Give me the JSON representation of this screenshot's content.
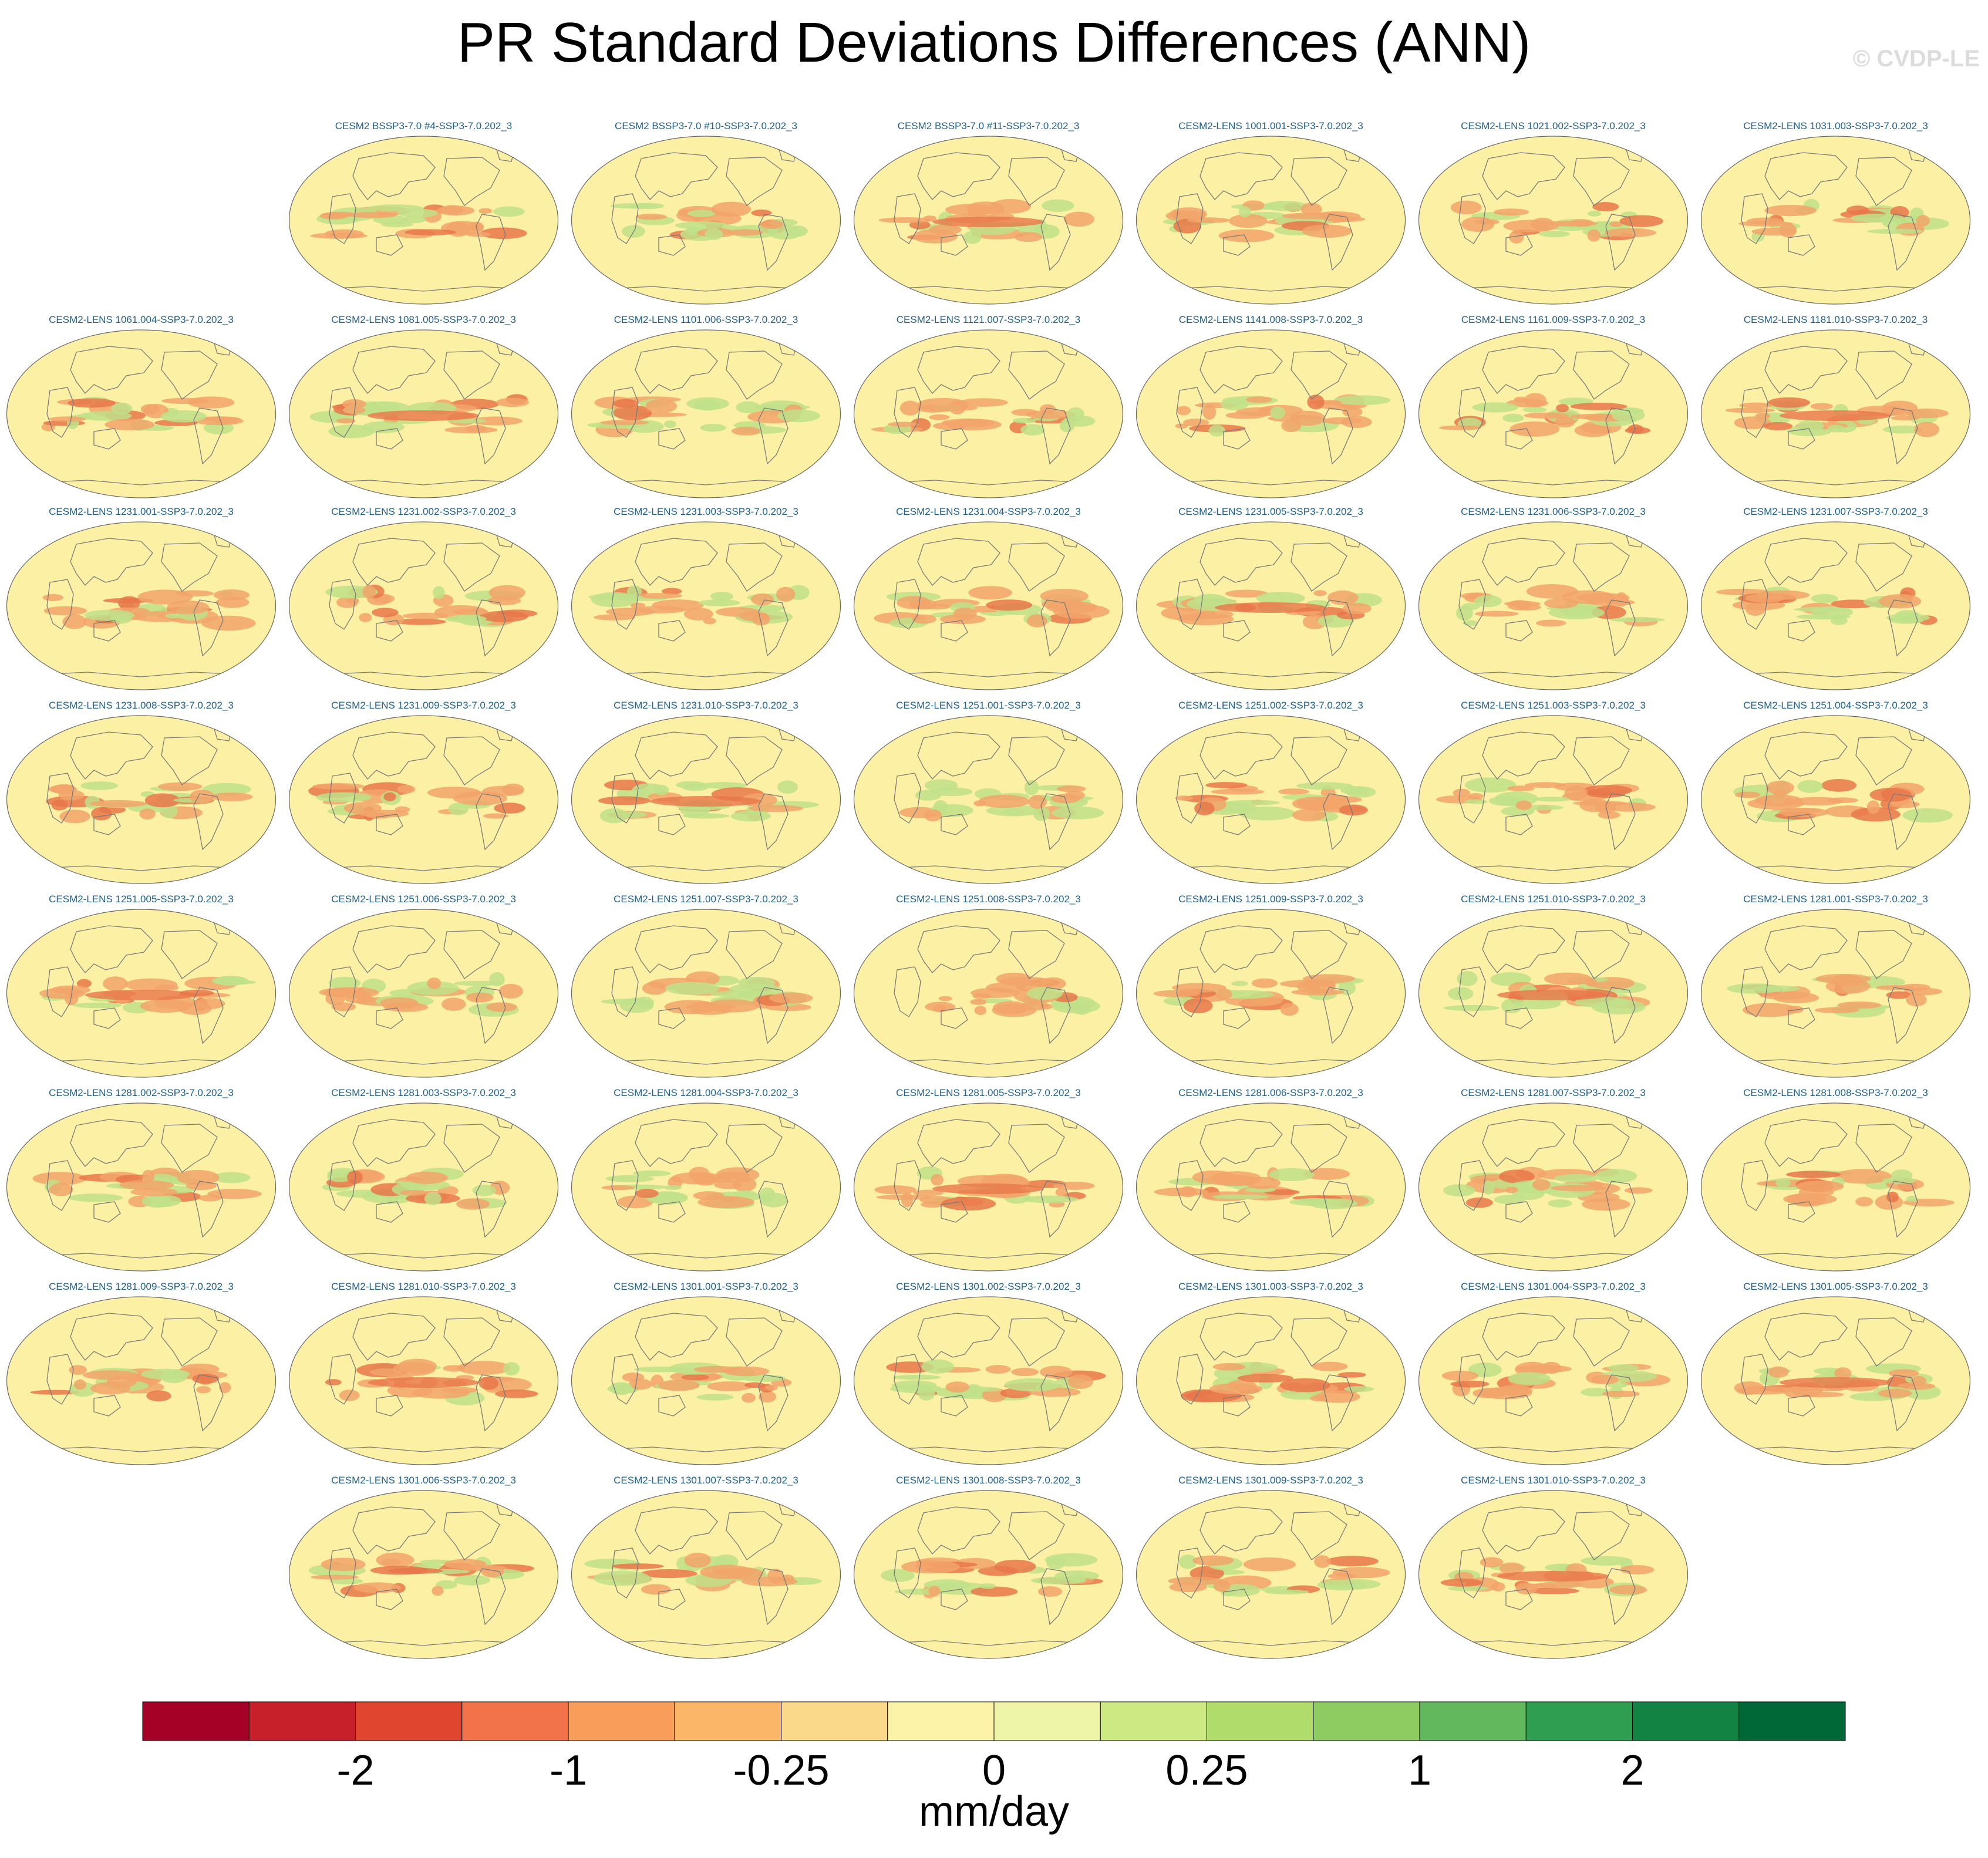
{
  "figure": {
    "title": "PR Standard Deviations Differences (ANN)",
    "watermark": "© CVDP-LE"
  },
  "chart_data": {
    "type": "heatmap",
    "projection": "global map panels (Robinson-like), centered on the Pacific",
    "variable": "PR standard deviation difference",
    "season": "ANN",
    "panels": [
      "CESM2 BSSP3-7.0 #4-SSP3-7.0.202_3",
      "CESM2 BSSP3-7.0 #10-SSP3-7.0.202_3",
      "CESM2 BSSP3-7.0 #11-SSP3-7.0.202_3",
      "CESM2-LENS 1001.001-SSP3-7.0.202_3",
      "CESM2-LENS 1021.002-SSP3-7.0.202_3",
      "CESM2-LENS 1031.003-SSP3-7.0.202_3",
      "CESM2-LENS 1061.004-SSP3-7.0.202_3",
      "CESM2-LENS 1081.005-SSP3-7.0.202_3",
      "CESM2-LENS 1101.006-SSP3-7.0.202_3",
      "CESM2-LENS 1121.007-SSP3-7.0.202_3",
      "CESM2-LENS 1141.008-SSP3-7.0.202_3",
      "CESM2-LENS 1161.009-SSP3-7.0.202_3",
      "CESM2-LENS 1181.010-SSP3-7.0.202_3",
      "CESM2-LENS 1231.001-SSP3-7.0.202_3",
      "CESM2-LENS 1231.002-SSP3-7.0.202_3",
      "CESM2-LENS 1231.003-SSP3-7.0.202_3",
      "CESM2-LENS 1231.004-SSP3-7.0.202_3",
      "CESM2-LENS 1231.005-SSP3-7.0.202_3",
      "CESM2-LENS 1231.006-SSP3-7.0.202_3",
      "CESM2-LENS 1231.007-SSP3-7.0.202_3",
      "CESM2-LENS 1231.008-SSP3-7.0.202_3",
      "CESM2-LENS 1231.009-SSP3-7.0.202_3",
      "CESM2-LENS 1231.010-SSP3-7.0.202_3",
      "CESM2-LENS 1251.001-SSP3-7.0.202_3",
      "CESM2-LENS 1251.002-SSP3-7.0.202_3",
      "CESM2-LENS 1251.003-SSP3-7.0.202_3",
      "CESM2-LENS 1251.004-SSP3-7.0.202_3",
      "CESM2-LENS 1251.005-SSP3-7.0.202_3",
      "CESM2-LENS 1251.006-SSP3-7.0.202_3",
      "CESM2-LENS 1251.007-SSP3-7.0.202_3",
      "CESM2-LENS 1251.008-SSP3-7.0.202_3",
      "CESM2-LENS 1251.009-SSP3-7.0.202_3",
      "CESM2-LENS 1251.010-SSP3-7.0.202_3",
      "CESM2-LENS 1281.001-SSP3-7.0.202_3",
      "CESM2-LENS 1281.002-SSP3-7.0.202_3",
      "CESM2-LENS 1281.003-SSP3-7.0.202_3",
      "CESM2-LENS 1281.004-SSP3-7.0.202_3",
      "CESM2-LENS 1281.005-SSP3-7.0.202_3",
      "CESM2-LENS 1281.006-SSP3-7.0.202_3",
      "CESM2-LENS 1281.007-SSP3-7.0.202_3",
      "CESM2-LENS 1281.008-SSP3-7.0.202_3",
      "CESM2-LENS 1281.009-SSP3-7.0.202_3",
      "CESM2-LENS 1281.010-SSP3-7.0.202_3",
      "CESM2-LENS 1301.001-SSP3-7.0.202_3",
      "CESM2-LENS 1301.002-SSP3-7.0.202_3",
      "CESM2-LENS 1301.003-SSP3-7.0.202_3",
      "CESM2-LENS 1301.004-SSP3-7.0.202_3",
      "CESM2-LENS 1301.005-SSP3-7.0.202_3",
      "CESM2-LENS 1301.006-SSP3-7.0.202_3",
      "CESM2-LENS 1301.007-SSP3-7.0.202_3",
      "CESM2-LENS 1301.008-SSP3-7.0.202_3",
      "CESM2-LENS 1301.009-SSP3-7.0.202_3",
      "CESM2-LENS 1301.010-SSP3-7.0.202_3"
    ],
    "colorbar": {
      "units": "mm/day",
      "tick_labels": [
        "-2",
        "-1",
        "-0.25",
        "0",
        "0.25",
        "1",
        "2"
      ],
      "colors": [
        "#a50026",
        "#c8202a",
        "#e04530",
        "#f2724a",
        "#f89d5a",
        "#fbb767",
        "#fbd98a",
        "#fdf3a8",
        "#eef5a9",
        "#cde983",
        "#b0dc6b",
        "#8ecc62",
        "#62b85d",
        "#2f9e50",
        "#138343",
        "#006837"
      ]
    },
    "map_colors": {
      "ocean_base": "#fbf0a3",
      "land": "#fdf3a8",
      "coast": "#7a7a7a",
      "decrease": "#f2a56a",
      "strong_decrease": "#e8774a",
      "increase": "#bfe08a"
    }
  }
}
